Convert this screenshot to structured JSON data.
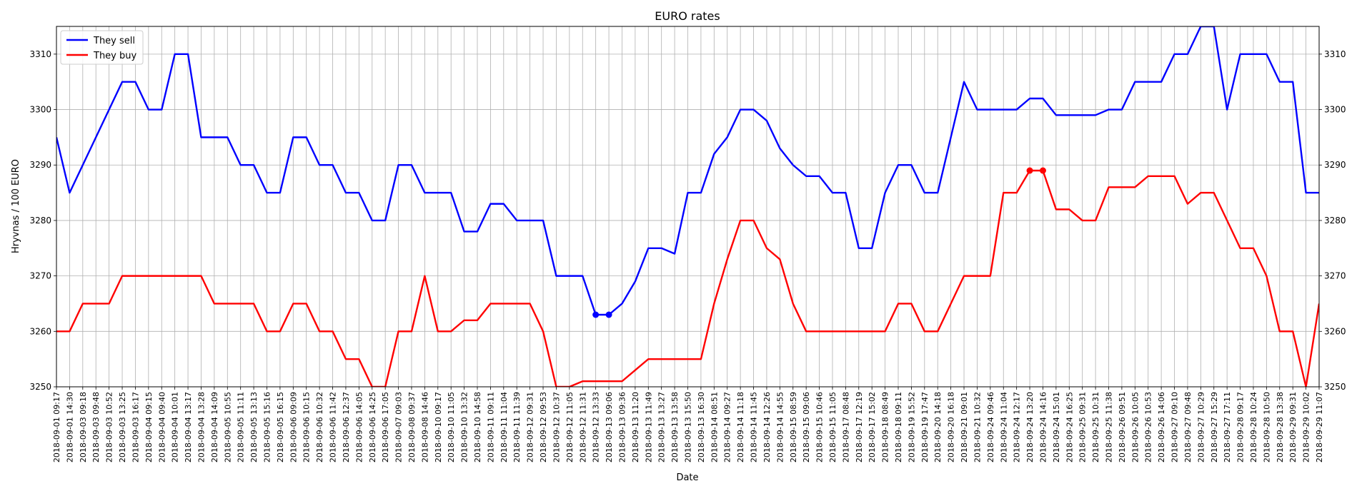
{
  "chart_data": {
    "type": "line",
    "title": "EURO rates",
    "xlabel": "Date",
    "ylabel": "Hryvnas / 100 EURO",
    "ylim": [
      3250,
      3315
    ],
    "yticks": [
      3250,
      3260,
      3270,
      3280,
      3290,
      3300,
      3310
    ],
    "grid": true,
    "legend_position": "top-left",
    "x": [
      "2018-09-01 09:17",
      "2018-09-01 14:30",
      "2018-09-03 09:18",
      "2018-09-03 09:48",
      "2018-09-03 10:52",
      "2018-09-03 13:25",
      "2018-09-03 16:17",
      "2018-09-04 09:15",
      "2018-09-04 09:40",
      "2018-09-04 10:01",
      "2018-09-04 13:17",
      "2018-09-04 13:28",
      "2018-09-04 14:09",
      "2018-09-05 10:55",
      "2018-09-05 11:11",
      "2018-09-05 13:13",
      "2018-09-05 15:16",
      "2018-09-05 16:15",
      "2018-09-06 09:09",
      "2018-09-06 10:15",
      "2018-09-06 10:32",
      "2018-09-06 11:42",
      "2018-09-06 12:37",
      "2018-09-06 14:05",
      "2018-09-06 14:25",
      "2018-09-06 17:05",
      "2018-09-07 09:03",
      "2018-09-08 09:37",
      "2018-09-08 14:46",
      "2018-09-10 09:17",
      "2018-09-10 11:05",
      "2018-09-10 13:32",
      "2018-09-10 14:58",
      "2018-09-11 09:11",
      "2018-09-11 11:04",
      "2018-09-11 11:39",
      "2018-09-12 09:31",
      "2018-09-12 09:53",
      "2018-09-12 10:37",
      "2018-09-12 11:05",
      "2018-09-12 11:31",
      "2018-09-12 13:33",
      "2018-09-13 09:06",
      "2018-09-13 09:36",
      "2018-09-13 11:20",
      "2018-09-13 11:49",
      "2018-09-13 13:27",
      "2018-09-13 13:58",
      "2018-09-13 15:50",
      "2018-09-13 16:30",
      "2018-09-14 08:51",
      "2018-09-14 09:27",
      "2018-09-14 11:18",
      "2018-09-14 11:45",
      "2018-09-14 12:26",
      "2018-09-14 14:55",
      "2018-09-15 08:59",
      "2018-09-15 09:06",
      "2018-09-15 10:46",
      "2018-09-15 11:05",
      "2018-09-17 08:48",
      "2018-09-17 12:19",
      "2018-09-17 15:02",
      "2018-09-18 08:49",
      "2018-09-18 09:11",
      "2018-09-19 15:52",
      "2018-09-19 17:47",
      "2018-09-20 14:18",
      "2018-09-20 16:18",
      "2018-09-21 09:01",
      "2018-09-21 10:32",
      "2018-09-24 09:46",
      "2018-09-24 11:04",
      "2018-09-24 12:17",
      "2018-09-24 13:20",
      "2018-09-24 14:16",
      "2018-09-24 15:01",
      "2018-09-24 16:25",
      "2018-09-25 09:31",
      "2018-09-25 10:31",
      "2018-09-25 11:38",
      "2018-09-26 09:51",
      "2018-09-26 10:05",
      "2018-09-26 10:53",
      "2018-09-26 14:06",
      "2018-09-27 09:10",
      "2018-09-27 09:48",
      "2018-09-27 10:29",
      "2018-09-27 15:29",
      "2018-09-27 17:11",
      "2018-09-28 09:17",
      "2018-09-28 10:24",
      "2018-09-28 10:50",
      "2018-09-28 13:38",
      "2018-09-29 09:31",
      "2018-09-29 10:02",
      "2018-09-29 11:07"
    ],
    "series": [
      {
        "name": "They sell",
        "color": "#0000ff",
        "values": [
          3295,
          3285,
          3290,
          3295,
          3300,
          3305,
          3305,
          3300,
          3300,
          3310,
          3310,
          3295,
          3295,
          3295,
          3290,
          3290,
          3285,
          3285,
          3295,
          3295,
          3290,
          3290,
          3285,
          3285,
          3280,
          3280,
          3290,
          3290,
          3285,
          3285,
          3285,
          3278,
          3278,
          3283,
          3283,
          3280,
          3280,
          3280,
          3270,
          3270,
          3270,
          3263,
          3263,
          3265,
          3269,
          3275,
          3275,
          3274,
          3285,
          3285,
          3292,
          3295,
          3300,
          3300,
          3298,
          3293,
          3290,
          3288,
          3288,
          3285,
          3285,
          3275,
          3275,
          3285,
          3290,
          3290,
          3285,
          3285,
          3295,
          3305,
          3300,
          3300,
          3300,
          3300,
          3302,
          3302,
          3299,
          3299,
          3299,
          3299,
          3300,
          3300,
          3305,
          3305,
          3305,
          3310,
          3310,
          3315,
          3315,
          3300,
          3310,
          3310,
          3310,
          3305,
          3305,
          3285,
          3285
        ],
        "markers": [
          41,
          42
        ]
      },
      {
        "name": "They buy",
        "color": "#ff0000",
        "values": [
          3260,
          3260,
          3265,
          3265,
          3265,
          3270,
          3270,
          3270,
          3270,
          3270,
          3270,
          3270,
          3265,
          3265,
          3265,
          3265,
          3260,
          3260,
          3265,
          3265,
          3260,
          3260,
          3255,
          3255,
          3250,
          3250,
          3260,
          3260,
          3270,
          3260,
          3260,
          3262,
          3262,
          3265,
          3265,
          3265,
          3265,
          3260,
          3250,
          3250,
          3251,
          3251,
          3251,
          3251,
          3253,
          3255,
          3255,
          3255,
          3255,
          3255,
          3265,
          3273,
          3280,
          3280,
          3275,
          3273,
          3265,
          3260,
          3260,
          3260,
          3260,
          3260,
          3260,
          3260,
          3265,
          3265,
          3260,
          3260,
          3265,
          3270,
          3270,
          3270,
          3285,
          3285,
          3289,
          3289,
          3282,
          3282,
          3280,
          3280,
          3286,
          3286,
          3286,
          3288,
          3288,
          3288,
          3283,
          3285,
          3285,
          3280,
          3275,
          3275,
          3270,
          3260,
          3260,
          3250,
          3265
        ],
        "markers": [
          74,
          75
        ]
      }
    ]
  }
}
